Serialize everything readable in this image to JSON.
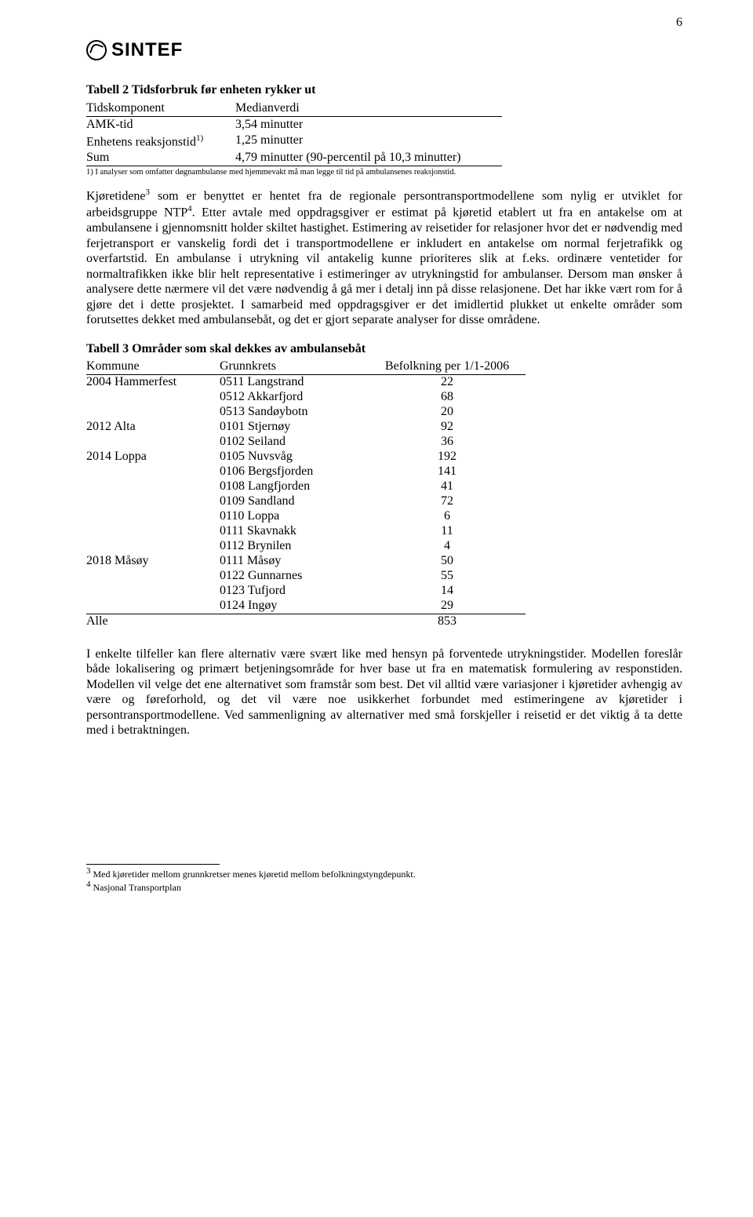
{
  "page_number": "6",
  "logo_text": "SINTEF",
  "table2": {
    "title": "Tabell 2 Tidsforbruk før enheten rykker ut",
    "head_left": "Tidskomponent",
    "head_right": "Medianverdi",
    "rows": [
      {
        "left": "AMK-tid",
        "right": "3,54 minutter"
      },
      {
        "left": "Enhetens reaksjonstid",
        "sup": "1)",
        "right": "1,25 minutter"
      },
      {
        "left": "Sum",
        "right": "4,79 minutter (90-percentil på 10,3 minutter)"
      }
    ],
    "note": "1) I analyser som omfatter døgnambulanse med hjemmevakt må man legge til tid på ambulansenes reaksjonstid."
  },
  "para1_a": "Kjøretidene",
  "para1_sup1": "3",
  "para1_b": " som er benyttet er hentet fra de regionale persontransportmodellene som nylig er utviklet for arbeidsgruppe NTP",
  "para1_sup2": "4",
  "para1_c": ". Etter avtale med oppdragsgiver er estimat på kjøretid etablert ut fra en antakelse om at ambulansene i gjennomsnitt holder skiltet hastighet. Estimering av reisetider for relasjoner hvor det er nødvendig med ferjetransport er vanskelig fordi det i transportmodellene er inkludert en antakelse om normal ferjetrafikk og overfartstid. En ambulanse i utrykning vil antakelig kunne prioriteres slik at f.eks. ordinære ventetider for normaltrafikken ikke blir helt representative i estimeringer av utrykningstid for ambulanser. Dersom man ønsker å analysere dette nærmere vil det være nødvendig å gå mer i detalj inn på disse relasjonene. Det har ikke vært rom for å gjøre det i dette prosjektet. I samarbeid med oppdragsgiver er det imidlertid plukket ut enkelte områder som forutsettes dekket med ambulansebåt, og det er gjort separate analyser for disse områdene.",
  "table3": {
    "title": "Tabell 3 Områder som skal dekkes av ambulansebåt",
    "head": [
      "Kommune",
      "Grunnkrets",
      "Befolkning per 1/1-2006"
    ],
    "rows": [
      [
        "2004 Hammerfest",
        "0511 Langstrand",
        "22"
      ],
      [
        "",
        "0512 Akkarfjord",
        "68"
      ],
      [
        "",
        "0513 Sandøybotn",
        "20"
      ],
      [
        "2012 Alta",
        "0101 Stjernøy",
        "92"
      ],
      [
        "",
        "0102 Seiland",
        "36"
      ],
      [
        "2014 Loppa",
        "0105 Nuvsvåg",
        "192"
      ],
      [
        "",
        "0106 Bergsfjorden",
        "141"
      ],
      [
        "",
        "0108 Langfjorden",
        "41"
      ],
      [
        "",
        "0109 Sandland",
        "72"
      ],
      [
        "",
        "0110 Loppa",
        "6"
      ],
      [
        "",
        "0111 Skavnakk",
        "11"
      ],
      [
        "",
        "0112 Brynilen",
        "4"
      ],
      [
        "2018 Måsøy",
        "0111 Måsøy",
        "50"
      ],
      [
        "",
        "0122 Gunnarnes",
        "55"
      ],
      [
        "",
        "0123 Tufjord",
        "14"
      ],
      [
        "",
        "0124 Ingøy",
        "29"
      ]
    ],
    "total_row": [
      "Alle",
      "",
      "853"
    ]
  },
  "para2": "I enkelte tilfeller kan flere alternativ være svært like med hensyn på forventede utrykningstider. Modellen foreslår både lokalisering og primært betjeningsområde for hver base ut fra en matematisk formulering av responstiden. Modellen vil velge det ene alternativet som framstår som best. Det vil alltid være variasjoner i kjøretider avhengig av være og føreforhold, og det vil være noe usikkerhet forbundet med estimeringene av kjøretider i persontransportmodellene. Ved sammenligning av alternativer med små forskjeller i reisetid er det viktig å ta dette med i betraktningen.",
  "footnotes": {
    "f3_sup": "3",
    "f3_text": " Med kjøretider mellom grunnkretser menes kjøretid mellom befolkningstyngdepunkt.",
    "f4_sup": "4",
    "f4_text": " Nasjonal Transportplan"
  }
}
